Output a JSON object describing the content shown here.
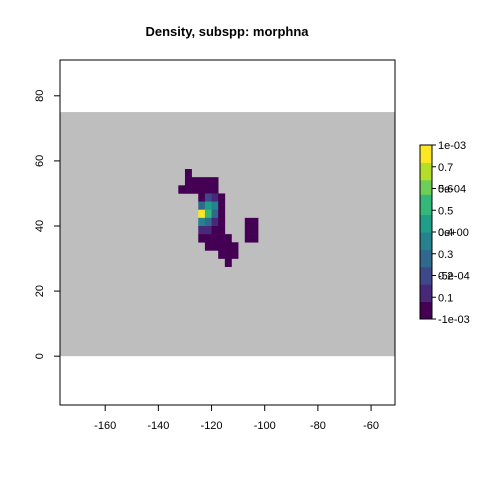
{
  "chart_data": {
    "type": "heatmap",
    "title": "Density, subspp: morphna",
    "xlabel": "",
    "ylabel": "",
    "xlim": [
      -177,
      -51
    ],
    "ylim": [
      -15,
      91
    ],
    "x_ticks": [
      -160,
      -140,
      -120,
      -100,
      -80,
      -60
    ],
    "y_ticks": [
      0,
      20,
      40,
      60,
      80
    ],
    "background_band": {
      "ymin": 0,
      "ymax": 75,
      "color": "#bebebe"
    },
    "cell_size": 2.5,
    "palette": [
      "#440154",
      "#482878",
      "#3e4989",
      "#31688e",
      "#26828e",
      "#1f9e89",
      "#35b779",
      "#6ece58",
      "#b5de2b",
      "#fde725"
    ],
    "cells": [
      [
        -130,
        55,
        0.02
      ],
      [
        -130,
        52.5,
        0.02
      ],
      [
        -127.5,
        52.5,
        0.02
      ],
      [
        -125,
        52.5,
        0.02
      ],
      [
        -122.5,
        52.5,
        0.02
      ],
      [
        -120,
        52.5,
        0.02
      ],
      [
        -132.5,
        50,
        0.02
      ],
      [
        -130,
        50,
        0.02
      ],
      [
        -127.5,
        50,
        0.02
      ],
      [
        -125,
        50,
        0.02
      ],
      [
        -122.5,
        50,
        0.08
      ],
      [
        -120,
        50,
        0.02
      ],
      [
        -125,
        47.5,
        0.08
      ],
      [
        -122.5,
        47.5,
        0.18
      ],
      [
        -120,
        47.5,
        0.12
      ],
      [
        -117.5,
        47.5,
        0.02
      ],
      [
        -125,
        45,
        0.28
      ],
      [
        -122.5,
        45,
        0.45
      ],
      [
        -120,
        45,
        0.35
      ],
      [
        -117.5,
        45,
        0.02
      ],
      [
        -125,
        42.5,
        0.75
      ],
      [
        -122.5,
        42.5,
        0.48
      ],
      [
        -120,
        42.5,
        0.28
      ],
      [
        -117.5,
        42.5,
        0.02
      ],
      [
        -125,
        40,
        0.35
      ],
      [
        -122.5,
        40,
        0.25
      ],
      [
        -120,
        40,
        0.15
      ],
      [
        -117.5,
        40,
        0.02
      ],
      [
        -107.5,
        40,
        0.02
      ],
      [
        -105,
        40,
        0.02
      ],
      [
        -125,
        37.5,
        0.1
      ],
      [
        -122.5,
        37.5,
        0.15
      ],
      [
        -120,
        37.5,
        0.08
      ],
      [
        -117.5,
        37.5,
        0.02
      ],
      [
        -107.5,
        37.5,
        0.02
      ],
      [
        -105,
        37.5,
        0.02
      ],
      [
        -125,
        35,
        0.05
      ],
      [
        -122.5,
        35,
        0.08
      ],
      [
        -120,
        35,
        0.04
      ],
      [
        -117.5,
        35,
        0.02
      ],
      [
        -115,
        35,
        0.02
      ],
      [
        -107.5,
        35,
        0.02
      ],
      [
        -105,
        35,
        0.02
      ],
      [
        -122.5,
        32.5,
        0.02
      ],
      [
        -120,
        32.5,
        0.02
      ],
      [
        -117.5,
        32.5,
        0.02
      ],
      [
        -115,
        32.5,
        0.02
      ],
      [
        -112.5,
        32.5,
        0.02
      ],
      [
        -117.5,
        30,
        0.02
      ],
      [
        -115,
        30,
        0.02
      ],
      [
        -112.5,
        30,
        0.02
      ],
      [
        -115,
        27.5,
        0.02
      ]
    ],
    "colorbar_main": {
      "range": [
        0,
        0.8
      ],
      "ticks": [
        "0.1",
        "0.2",
        "0.3",
        "0.4",
        "0.5",
        "0.6",
        "0.7"
      ],
      "tick_values": [
        0.1,
        0.2,
        0.3,
        0.4,
        0.5,
        0.6,
        0.7
      ]
    },
    "colorbar_overlay": {
      "range": [
        -0.001,
        0.001
      ],
      "ticks": [
        "-1e-03",
        "-5e-04",
        "0e+00",
        "5e-04",
        "1e-03"
      ],
      "tick_values": [
        -0.001,
        -0.0005,
        0,
        0.0005,
        0.001
      ]
    }
  }
}
